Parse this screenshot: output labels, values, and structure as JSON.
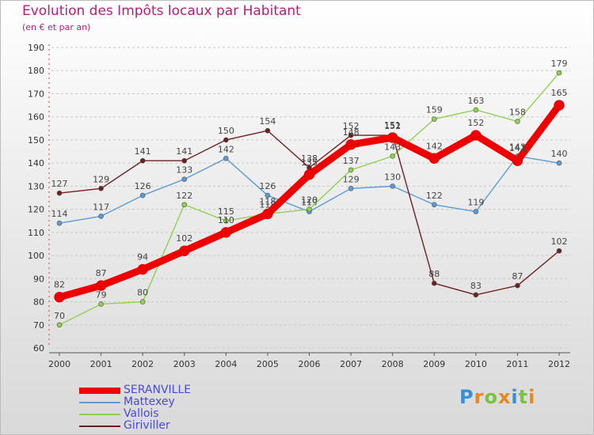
{
  "chart_data": {
    "type": "line",
    "title": "Evolution des Impôts locaux par Habitant",
    "subtitle": "(en € et par an)",
    "x": [
      "2000",
      "2001",
      "2002",
      "2003",
      "2004",
      "2005",
      "2006",
      "2007",
      "2008",
      "2009",
      "2010",
      "2011",
      "2012"
    ],
    "ylim": [
      60,
      190
    ],
    "yticks": [
      60,
      70,
      80,
      90,
      100,
      110,
      120,
      130,
      140,
      150,
      160,
      170,
      180,
      190
    ],
    "grid": "horizontal dashed",
    "legend_position": "bottom-left",
    "series": [
      {
        "name": "SERANVILLE",
        "color": "#ee0000",
        "values": [
          82,
          87,
          94,
          102,
          110,
          118,
          135,
          148,
          151,
          142,
          152,
          141,
          165
        ]
      },
      {
        "name": "Mattexey",
        "color": "#5b9bd5",
        "values": [
          114,
          117,
          126,
          133,
          142,
          126,
          119,
          129,
          130,
          122,
          119,
          143,
          140
        ]
      },
      {
        "name": "Vallois",
        "color": "#8fd14f",
        "values": [
          70,
          79,
          80,
          122,
          115,
          118,
          120,
          137,
          143,
          159,
          163,
          158,
          179
        ]
      },
      {
        "name": "Giriviller",
        "color": "#6e2020",
        "values": [
          127,
          129,
          141,
          141,
          150,
          154,
          138,
          152,
          152,
          88,
          83,
          87,
          102
        ]
      }
    ]
  },
  "logo": {
    "letters": [
      "P",
      "r",
      "o",
      "x",
      "i",
      "t",
      "i"
    ],
    "colors": [
      "#3a8fd8",
      "#e8871e",
      "#7cc242",
      "#e8871e",
      "#3a8fd8",
      "#7cc242",
      "#e8871e"
    ]
  }
}
